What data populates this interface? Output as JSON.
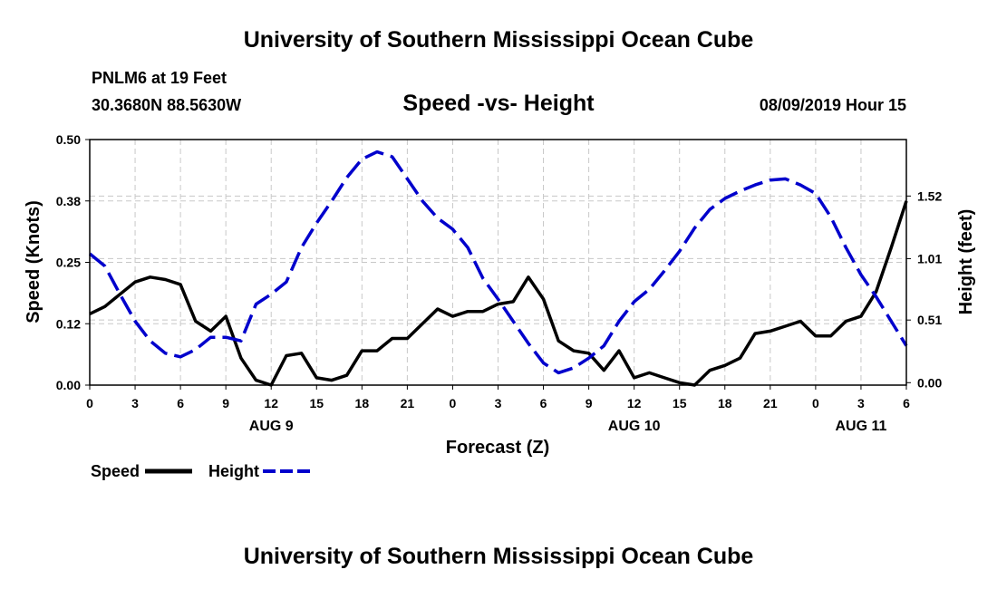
{
  "header": {
    "title": "University of Southern Mississippi Ocean Cube",
    "station": "PNLM6 at 19 Feet",
    "coordinates": "30.3680N 88.5630W",
    "chart_title": "Speed -vs- Height",
    "timestamp": "08/09/2019 Hour 15"
  },
  "footer": {
    "title": "University of Southern Mississippi Ocean Cube"
  },
  "colors": {
    "speed": "#000000",
    "height": "#0000cc",
    "grid": "#c8c8c8"
  },
  "chart_data": {
    "type": "line",
    "title": "Speed -vs- Height",
    "xlabel": "Forecast (Z)",
    "ylabel": "Speed (Knots)",
    "y2label": "Height (feet)",
    "xlim": [
      0,
      54
    ],
    "ylim": [
      0,
      0.5
    ],
    "y2lim": [
      -0.02,
      1.98
    ],
    "x_ticks": [
      0,
      3,
      6,
      9,
      12,
      15,
      18,
      21,
      24,
      27,
      30,
      33,
      36,
      39,
      42,
      45,
      48,
      51,
      54
    ],
    "x_tick_labels": [
      "0",
      "3",
      "6",
      "9",
      "12",
      "15",
      "18",
      "21",
      "0",
      "3",
      "6",
      "9",
      "12",
      "15",
      "18",
      "21",
      "0",
      "3",
      "6"
    ],
    "date_labels": [
      {
        "x": 12,
        "label": "AUG 9"
      },
      {
        "x": 36,
        "label": "AUG 10"
      },
      {
        "x": 51,
        "label": "AUG 11"
      }
    ],
    "y_ticks": [
      0,
      0.125,
      0.25,
      0.375,
      0.5
    ],
    "y_tick_labels": [
      "0.00",
      "0.12",
      "0.25",
      "0.38",
      "0.50"
    ],
    "y2_ticks": [
      0.0,
      0.51,
      1.01,
      1.52
    ],
    "y2_tick_labels": [
      "0.00",
      "0.51",
      "1.01",
      "1.52"
    ],
    "grid": true,
    "legend_position": "bottom-left",
    "series": [
      {
        "name": "Speed",
        "axis": "left",
        "style": "solid",
        "x": [
          0,
          1,
          2,
          3,
          4,
          5,
          6,
          7,
          8,
          9,
          10,
          11,
          12,
          13,
          14,
          15,
          16,
          17,
          18,
          19,
          20,
          21,
          22,
          23,
          24,
          25,
          26,
          27,
          28,
          29,
          30,
          31,
          32,
          33,
          34,
          35,
          36,
          37,
          38,
          39,
          40,
          41,
          42,
          43,
          44,
          45,
          46,
          47,
          48,
          49,
          50,
          51,
          52,
          53,
          54
        ],
        "values": [
          0.145,
          0.16,
          0.185,
          0.21,
          0.22,
          0.215,
          0.205,
          0.13,
          0.11,
          0.14,
          0.055,
          0.01,
          0,
          0.06,
          0.065,
          0.015,
          0.01,
          0.02,
          0.07,
          0.07,
          0.095,
          0.095,
          0.125,
          0.155,
          0.14,
          0.15,
          0.15,
          0.165,
          0.17,
          0.22,
          0.175,
          0.09,
          0.07,
          0.065,
          0.03,
          0.07,
          0.015,
          0.025,
          0.015,
          0.005,
          0,
          0.03,
          0.04,
          0.055,
          0.105,
          0.11,
          0.12,
          0.13,
          0.1,
          0.1,
          0.13,
          0.14,
          0.19,
          0.28,
          0.375
        ]
      },
      {
        "name": "Height",
        "axis": "right",
        "style": "dashed",
        "x": [
          0,
          1,
          2,
          3,
          4,
          5,
          6,
          7,
          8,
          9,
          10,
          11,
          12,
          13,
          14,
          15,
          16,
          17,
          18,
          19,
          20,
          21,
          22,
          23,
          24,
          25,
          26,
          27,
          28,
          29,
          30,
          31,
          32,
          33,
          34,
          35,
          36,
          37,
          38,
          39,
          40,
          41,
          42,
          43,
          44,
          45,
          46,
          47,
          48,
          49,
          50,
          51,
          52,
          53,
          54
        ],
        "values": [
          1.05,
          0.95,
          0.72,
          0.5,
          0.34,
          0.24,
          0.21,
          0.27,
          0.37,
          0.37,
          0.34,
          0.64,
          0.72,
          0.82,
          1.1,
          1.3,
          1.48,
          1.67,
          1.82,
          1.88,
          1.84,
          1.66,
          1.48,
          1.34,
          1.25,
          1.1,
          0.85,
          0.68,
          0.5,
          0.32,
          0.16,
          0.08,
          0.12,
          0.2,
          0.3,
          0.5,
          0.66,
          0.76,
          0.91,
          1.07,
          1.26,
          1.41,
          1.5,
          1.56,
          1.61,
          1.65,
          1.66,
          1.61,
          1.54,
          1.35,
          1.1,
          0.88,
          0.7,
          0.5,
          0.3
        ]
      }
    ]
  }
}
